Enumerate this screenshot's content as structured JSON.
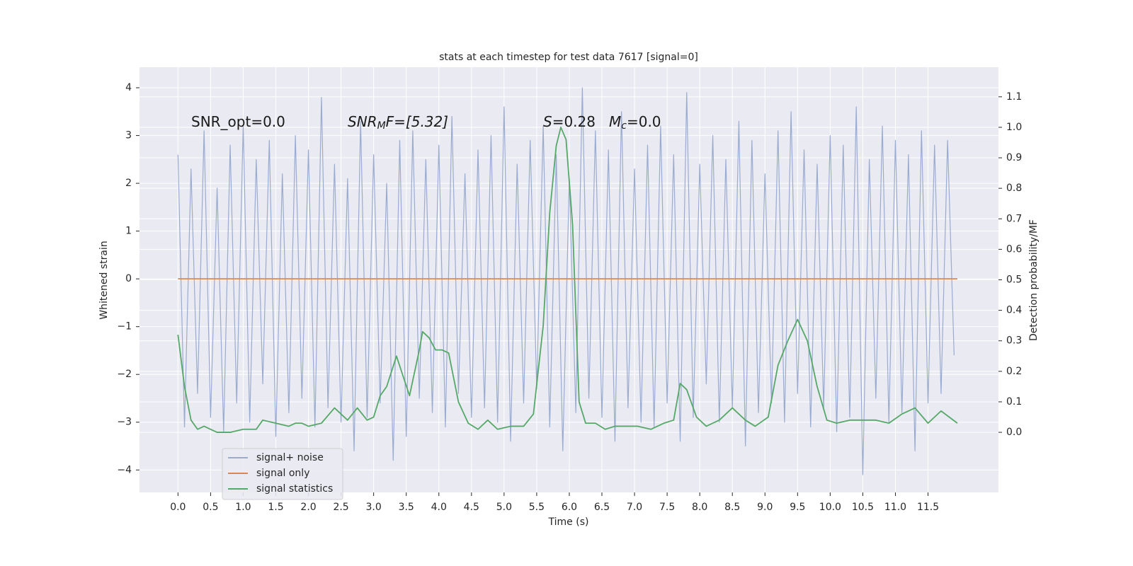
{
  "chart_data": {
    "type": "line",
    "title": "stats at each timestep for test data 7617 [signal=0]",
    "xlabel": "Time (s)",
    "ylabel": "Whitened strain",
    "y2label": "Detection probability/MF",
    "annotations": [
      {
        "parts": [
          "SNR_opt=0.0"
        ]
      },
      {
        "parts": [
          "SNR",
          "M",
          "F=[5.32]"
        ]
      },
      {
        "parts": [
          "S",
          "=0.28",
          "M",
          "c",
          "=0.0"
        ]
      }
    ],
    "xlim": [
      -0.59,
      12.58
    ],
    "ylim": [
      -4.47,
      4.43
    ],
    "y2lim": [
      -0.197,
      1.197
    ],
    "xticks": [
      {
        "value": 0,
        "label": "0.0"
      },
      0.5,
      {
        "value": 1,
        "label": "1.0"
      },
      1.5,
      {
        "value": 2,
        "label": "2.0"
      },
      2.5,
      {
        "value": 3,
        "label": "3.0"
      },
      3.5,
      {
        "value": 4,
        "label": "4.0"
      },
      4.5,
      {
        "value": 5,
        "label": "5.0"
      },
      5.5,
      {
        "value": 6,
        "label": "6.0"
      },
      6.5,
      {
        "value": 7,
        "label": "7.0"
      },
      7.5,
      {
        "value": 8,
        "label": "8.0"
      },
      8.5,
      {
        "value": 9,
        "label": "9.0"
      },
      9.5,
      {
        "value": 10,
        "label": "10.0"
      },
      10.5,
      {
        "value": 11,
        "label": "11.0"
      },
      11.5
    ],
    "yticks": [
      {
        "value": -4,
        "label": "−4"
      },
      {
        "value": -3,
        "label": "−3"
      },
      {
        "value": -2,
        "label": "−2"
      },
      {
        "value": -1,
        "label": "−1"
      },
      0,
      1,
      2,
      3,
      4
    ],
    "y2ticks": [
      {
        "value": 0,
        "label": "0.0"
      },
      0.1,
      0.2,
      0.3,
      0.4,
      0.5,
      0.6,
      0.7,
      0.8,
      0.9,
      {
        "value": 1,
        "label": "1.0"
      },
      1.1
    ],
    "grid": true,
    "legend": "lower left",
    "series": [
      {
        "name": "signal+ noise",
        "color": "#9aabd0",
        "x": [
          0,
          0.1,
          0.2,
          0.3,
          0.4,
          0.5,
          0.6,
          0.7,
          0.8,
          0.9,
          1,
          1.1,
          1.2,
          1.3,
          1.4,
          1.5,
          1.6,
          1.7,
          1.8,
          1.9,
          2,
          2.1,
          2.2,
          2.3,
          2.4,
          2.5,
          2.6,
          2.7,
          2.8,
          2.9,
          3,
          3.1,
          3.2,
          3.3,
          3.4,
          3.5,
          3.6,
          3.7,
          3.8,
          3.9,
          4,
          4.1,
          4.2,
          4.3,
          4.4,
          4.5,
          4.6,
          4.7,
          4.8,
          4.9,
          5,
          5.1,
          5.2,
          5.3,
          5.4,
          5.5,
          5.6,
          5.7,
          5.8,
          5.9,
          6,
          6.1,
          6.2,
          6.3,
          6.4,
          6.5,
          6.6,
          6.7,
          6.8,
          6.9,
          7,
          7.1,
          7.2,
          7.3,
          7.4,
          7.5,
          7.6,
          7.7,
          7.8,
          7.9,
          8,
          8.1,
          8.2,
          8.3,
          8.4,
          8.5,
          8.6,
          8.7,
          8.8,
          8.9,
          9,
          9.1,
          9.2,
          9.3,
          9.4,
          9.5,
          9.6,
          9.7,
          9.8,
          9.9,
          10,
          10.1,
          10.2,
          10.3,
          10.4,
          10.5,
          10.6,
          10.7,
          10.8,
          10.9,
          11,
          11.1,
          11.2,
          11.3,
          11.4,
          11.5,
          11.6,
          11.7,
          11.8,
          11.9
        ],
        "values": [
          2.6,
          -3.1,
          2.3,
          -2.4,
          3.1,
          -2.9,
          1.9,
          -3.2,
          2.8,
          -2.6,
          3.2,
          -3.0,
          2.5,
          -2.2,
          2.9,
          -3.3,
          2.2,
          -2.8,
          3.0,
          -2.5,
          2.7,
          -3.1,
          3.8,
          -2.7,
          2.4,
          -3.0,
          2.1,
          -3.6,
          3.3,
          -2.9,
          2.6,
          -2.6,
          2.0,
          -3.8,
          2.9,
          -3.3,
          3.1,
          -2.5,
          2.5,
          -2.8,
          2.8,
          -3.1,
          3.4,
          -2.4,
          2.2,
          -2.9,
          2.7,
          -2.7,
          3.0,
          -3.0,
          3.6,
          -3.4,
          2.4,
          -2.6,
          2.9,
          -2.3,
          3.2,
          -3.1,
          2.6,
          -3.6,
          2.1,
          -2.8,
          4.0,
          -2.5,
          3.1,
          -2.9,
          2.7,
          -3.4,
          3.5,
          -2.7,
          2.3,
          -3.0,
          2.8,
          -3.1,
          3.2,
          -2.6,
          2.6,
          -3.4,
          3.9,
          -2.9,
          2.4,
          -2.2,
          3.0,
          -3.0,
          2.5,
          -2.7,
          3.3,
          -3.5,
          2.9,
          -2.8,
          2.2,
          -2.6,
          3.1,
          -3.0,
          3.5,
          -2.4,
          2.7,
          -3.1,
          2.4,
          -2.7,
          3.0,
          -3.2,
          2.8,
          -2.9,
          3.6,
          -4.1,
          2.5,
          -2.5,
          3.2,
          -3.0,
          2.9,
          -2.8,
          2.6,
          -3.6,
          3.1,
          -2.6,
          2.8,
          -2.4,
          2.9,
          -1.6
        ]
      },
      {
        "name": "signal only",
        "color": "#dd8452",
        "x": [
          0,
          11.95
        ],
        "values": [
          0,
          0
        ]
      },
      {
        "name": "signal statistics",
        "color": "#55a868",
        "axis": "y2",
        "x": [
          0,
          0.1,
          0.2,
          0.3,
          0.4,
          0.5,
          0.6,
          0.8,
          1,
          1.2,
          1.3,
          1.5,
          1.7,
          1.8,
          1.9,
          2,
          2.2,
          2.4,
          2.6,
          2.75,
          2.9,
          3,
          3.1,
          3.2,
          3.35,
          3.55,
          3.7,
          3.75,
          3.85,
          3.95,
          4.05,
          4.15,
          4.3,
          4.45,
          4.6,
          4.75,
          4.9,
          5.1,
          5.3,
          5.45,
          5.6,
          5.7,
          5.8,
          5.87,
          5.95,
          6.05,
          6.15,
          6.25,
          6.4,
          6.55,
          6.7,
          6.85,
          7.05,
          7.25,
          7.45,
          7.6,
          7.7,
          7.8,
          7.95,
          8.1,
          8.3,
          8.5,
          8.7,
          8.85,
          9.05,
          9.2,
          9.35,
          9.5,
          9.65,
          9.8,
          9.95,
          10.1,
          10.3,
          10.5,
          10.7,
          10.9,
          11.1,
          11.3,
          11.5,
          11.7,
          11.95
        ],
        "values": [
          0.32,
          0.15,
          0.04,
          0.01,
          0.02,
          0.01,
          0,
          0,
          0.01,
          0.01,
          0.04,
          0.03,
          0.02,
          0.03,
          0.03,
          0.02,
          0.03,
          0.08,
          0.04,
          0.08,
          0.04,
          0.05,
          0.12,
          0.15,
          0.25,
          0.12,
          0.27,
          0.33,
          0.31,
          0.27,
          0.27,
          0.26,
          0.1,
          0.03,
          0.01,
          0.04,
          0.01,
          0.02,
          0.02,
          0.06,
          0.35,
          0.72,
          0.94,
          1.0,
          0.96,
          0.68,
          0.1,
          0.03,
          0.03,
          0.01,
          0.02,
          0.02,
          0.02,
          0.01,
          0.03,
          0.04,
          0.16,
          0.14,
          0.05,
          0.02,
          0.04,
          0.08,
          0.04,
          0.02,
          0.05,
          0.22,
          0.3,
          0.37,
          0.3,
          0.15,
          0.04,
          0.03,
          0.04,
          0.04,
          0.04,
          0.03,
          0.06,
          0.08,
          0.03,
          0.07,
          0.03
        ]
      }
    ]
  }
}
